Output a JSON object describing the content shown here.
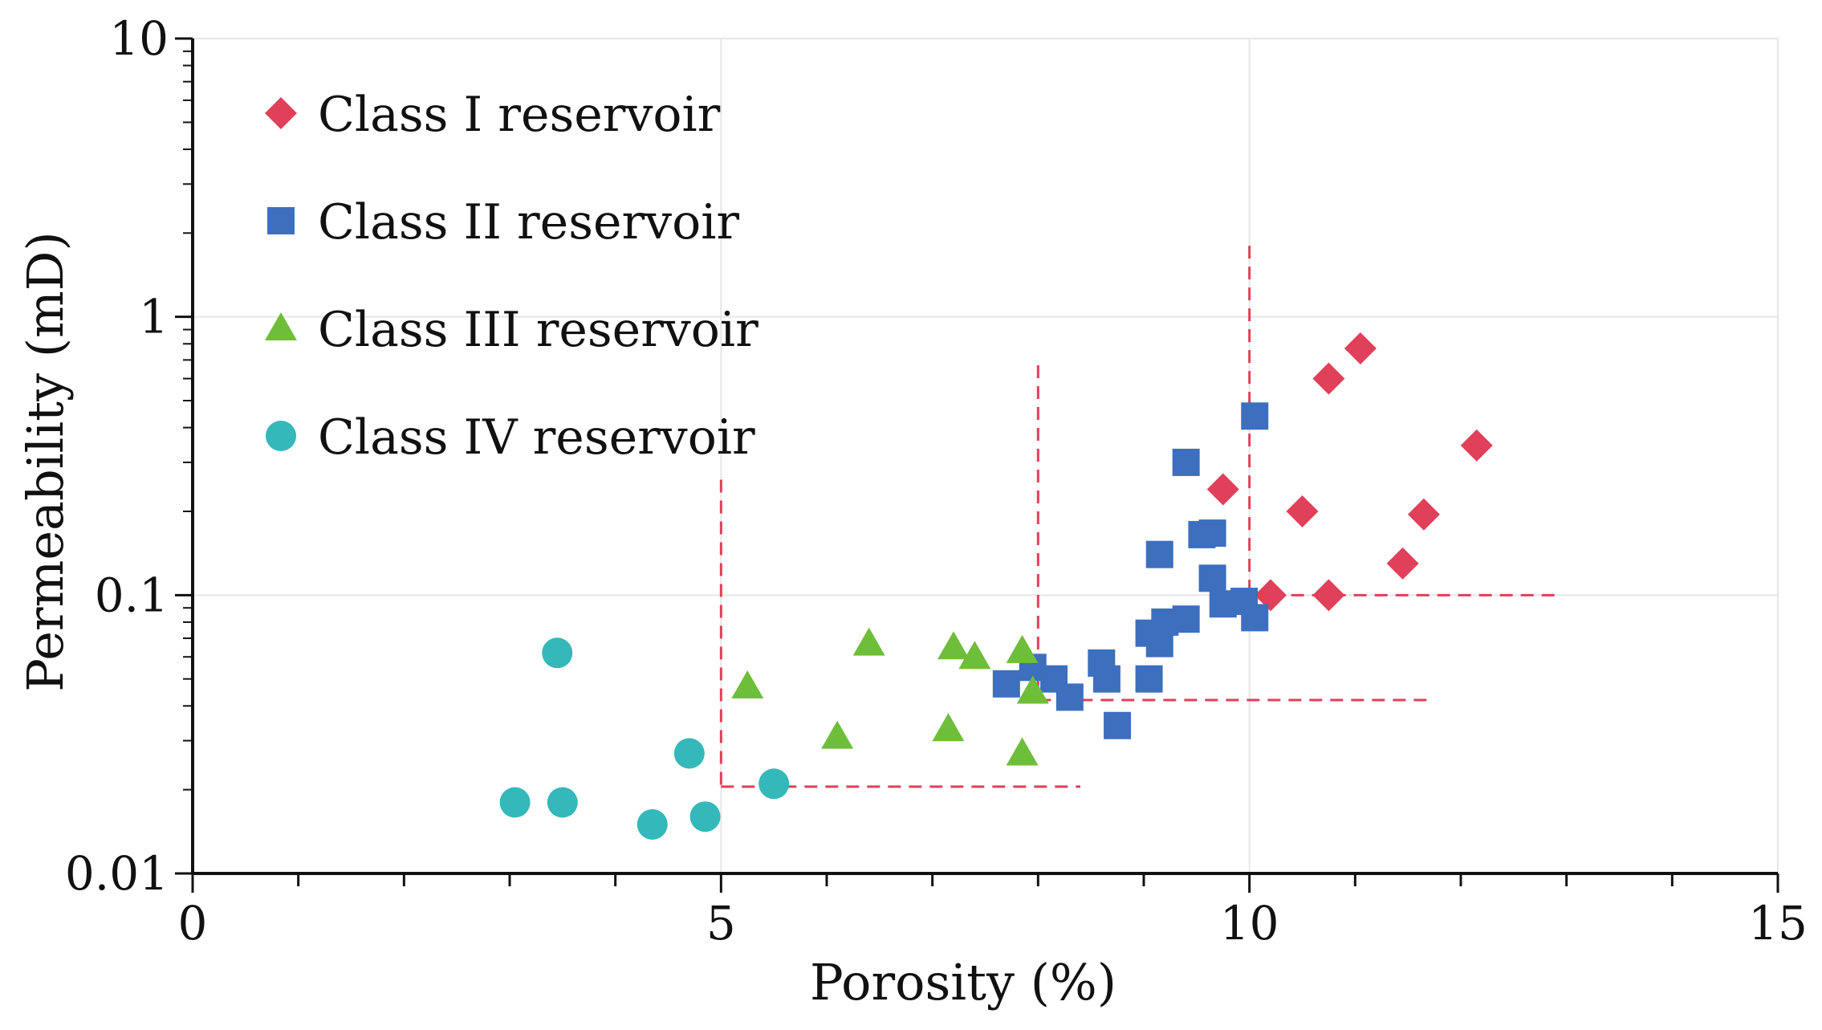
{
  "chart_data": {
    "type": "scatter",
    "title": "",
    "xlabel": "Porosity (%)",
    "ylabel": "Permeability (mD)",
    "xlim": [
      0,
      15
    ],
    "ylim": [
      0.01,
      10
    ],
    "yscale": "log",
    "grid": true,
    "legend_position": "top-left",
    "x_ticks": [
      {
        "value": 0,
        "label": "0"
      },
      {
        "value": 5,
        "label": "5"
      },
      {
        "value": 10,
        "label": "10"
      },
      {
        "value": 15,
        "label": "15"
      }
    ],
    "y_ticks": [
      {
        "value": 0.01,
        "label": "0.01"
      },
      {
        "value": 0.1,
        "label": "0.1"
      },
      {
        "value": 1,
        "label": "1"
      },
      {
        "value": 10,
        "label": "10"
      }
    ],
    "series": [
      {
        "name": "Class I reservoir",
        "marker": "diamond",
        "color": "#e0405a",
        "points": [
          [
            9.75,
            0.24
          ],
          [
            10.2,
            0.1
          ],
          [
            10.5,
            0.2
          ],
          [
            10.75,
            0.1
          ],
          [
            10.75,
            0.6
          ],
          [
            11.05,
            0.77
          ],
          [
            11.45,
            0.13
          ],
          [
            11.65,
            0.195
          ],
          [
            12.15,
            0.345
          ]
        ]
      },
      {
        "name": "Class II reservoir",
        "marker": "square",
        "color": "#3d6fbe",
        "points": [
          [
            7.7,
            0.048
          ],
          [
            7.95,
            0.055
          ],
          [
            8.15,
            0.05
          ],
          [
            8.3,
            0.043
          ],
          [
            8.6,
            0.057
          ],
          [
            8.65,
            0.05
          ],
          [
            8.75,
            0.034
          ],
          [
            9.05,
            0.05
          ],
          [
            9.05,
            0.073
          ],
          [
            9.15,
            0.14
          ],
          [
            9.15,
            0.067
          ],
          [
            9.2,
            0.08
          ],
          [
            9.4,
            0.3
          ],
          [
            9.4,
            0.082
          ],
          [
            9.55,
            0.165
          ],
          [
            9.65,
            0.167
          ],
          [
            9.65,
            0.115
          ],
          [
            9.75,
            0.093
          ],
          [
            9.95,
            0.095
          ],
          [
            10.05,
            0.083
          ],
          [
            10.05,
            0.44
          ]
        ]
      },
      {
        "name": "Class III reservoir",
        "marker": "triangle",
        "color": "#6fbe3a",
        "points": [
          [
            5.25,
            0.047
          ],
          [
            6.1,
            0.031
          ],
          [
            6.4,
            0.067
          ],
          [
            7.15,
            0.033
          ],
          [
            7.2,
            0.065
          ],
          [
            7.4,
            0.06
          ],
          [
            7.85,
            0.027
          ],
          [
            7.85,
            0.063
          ],
          [
            7.95,
            0.045
          ]
        ]
      },
      {
        "name": "Class IV reservoir",
        "marker": "circle",
        "color": "#35b8ba",
        "points": [
          [
            3.05,
            0.018
          ],
          [
            3.45,
            0.062
          ],
          [
            3.5,
            0.018
          ],
          [
            4.35,
            0.015
          ],
          [
            4.7,
            0.027
          ],
          [
            4.85,
            0.016
          ],
          [
            5.5,
            0.021
          ]
        ]
      }
    ],
    "boundary_lines": [
      {
        "from": [
          5,
          0.26
        ],
        "to": [
          5,
          0.0205
        ]
      },
      {
        "from": [
          5,
          0.0205
        ],
        "to": [
          8.4,
          0.0205
        ]
      },
      {
        "from": [
          8,
          0.67
        ],
        "to": [
          8,
          0.042
        ]
      },
      {
        "from": [
          8,
          0.042
        ],
        "to": [
          11.75,
          0.042
        ]
      },
      {
        "from": [
          10,
          1.8
        ],
        "to": [
          10,
          0.1
        ]
      },
      {
        "from": [
          10,
          0.1
        ],
        "to": [
          12.95,
          0.1
        ]
      }
    ],
    "boundary_line_color": "#e0405a"
  }
}
